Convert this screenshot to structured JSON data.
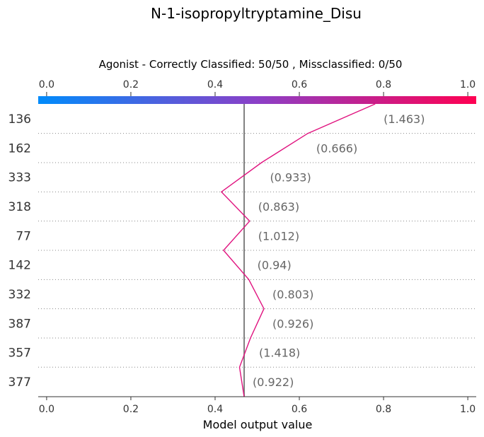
{
  "chart_data": {
    "type": "line",
    "title": "N-1-isopropyltryptamine_Disu",
    "subtitle": "Agonist - Correctly Classified: 50/50 , Missclassified: 0/50",
    "xlabel": "Model output value",
    "xlim": [
      -0.02,
      1.02
    ],
    "xticks": [
      "0.0",
      "0.2",
      "0.4",
      "0.6",
      "0.8",
      "1.0"
    ],
    "base_value": 0.469,
    "colorbar": {
      "from": "#008bfb",
      "mid": "#8b3fc7",
      "to": "#ff0052"
    },
    "line_color": "#e0137f",
    "rows": [
      {
        "feature": "136",
        "value": "(1.463)"
      },
      {
        "feature": "162",
        "value": "(0.666)"
      },
      {
        "feature": "333",
        "value": "(0.933)"
      },
      {
        "feature": "318",
        "value": "(0.863)"
      },
      {
        "feature": "77",
        "value": "(1.012)"
      },
      {
        "feature": "142",
        "value": "(0.94)"
      },
      {
        "feature": "332",
        "value": "(0.803)"
      },
      {
        "feature": "387",
        "value": "(0.926)"
      },
      {
        "feature": "357",
        "value": "(1.418)"
      },
      {
        "feature": "377",
        "value": "(0.922)"
      }
    ],
    "path_x": [
      0.78,
      0.62,
      0.51,
      0.415,
      0.482,
      0.42,
      0.48,
      0.516,
      0.484,
      0.458,
      0.469
    ]
  }
}
